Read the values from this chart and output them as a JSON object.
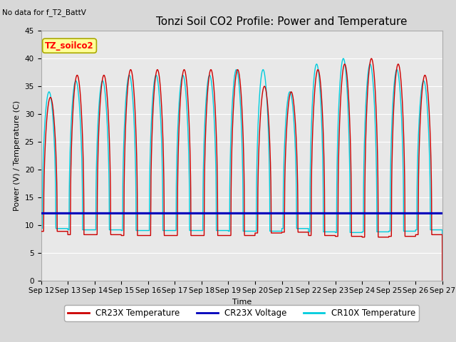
{
  "title": "Tonzi Soil CO2 Profile: Power and Temperature",
  "subtitle": "No data for f_T2_BattV",
  "xlabel": "Time",
  "ylabel": "Power (V) / Temperature (C)",
  "ylim": [
    0,
    45
  ],
  "yticks": [
    0,
    5,
    10,
    15,
    20,
    25,
    30,
    35,
    40,
    45
  ],
  "x_tick_labels": [
    "Sep 12",
    "Sep 13",
    "Sep 14",
    "Sep 15",
    "Sep 16",
    "Sep 17",
    "Sep 18",
    "Sep 19",
    "Sep 20",
    "Sep 21",
    "Sep 22",
    "Sep 23",
    "Sep 24",
    "Sep 25",
    "Sep 26",
    "Sep 27"
  ],
  "background_color": "#d8d8d8",
  "plot_bg_color": "#e8e8e8",
  "cr23x_temp_color": "#cc0000",
  "cr23x_volt_color": "#0000bb",
  "cr10x_temp_color": "#00ccdd",
  "annotation_box_color": "#ffff99",
  "annotation_box_edge": "#aaaa00",
  "title_fontsize": 11,
  "axis_label_fontsize": 8,
  "tick_fontsize": 7.5,
  "legend_fontsize": 8.5,
  "cr23x_volt_value": 12.1
}
